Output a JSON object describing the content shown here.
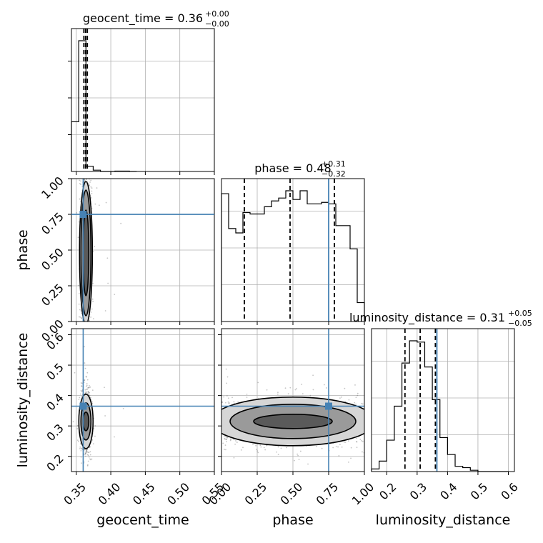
{
  "chart_data": {
    "type": "corner",
    "parameters": [
      "geocent_time",
      "phase",
      "luminosity_distance"
    ],
    "titles": [
      {
        "param": "geocent_time",
        "text": "geocent_time = 0.36",
        "plus": "+0.00",
        "minus": "−0.00"
      },
      {
        "param": "phase",
        "text": "phase = 0.48",
        "plus": "+0.31",
        "minus": "−0.32"
      },
      {
        "param": "luminosity_distance",
        "text": "luminosity_distance = 0.31",
        "plus": "+0.05",
        "minus": "−0.05"
      }
    ],
    "ranges": {
      "geocent_time": [
        0.343,
        0.55
      ],
      "phase": [
        0.0,
        1.0
      ],
      "luminosity_distance": [
        0.15,
        0.62
      ]
    },
    "ticks": {
      "geocent_time": [
        "0.35",
        "0.40",
        "0.45",
        "0.50",
        "0.55"
      ],
      "phase": [
        "0.00",
        "0.25",
        "0.50",
        "0.75",
        "1.00"
      ],
      "luminosity_distance": [
        "0.2",
        "0.3",
        "0.4",
        "0.5",
        "0.6"
      ]
    },
    "truths": {
      "geocent_time": 0.36,
      "phase": 0.75,
      "luminosity_distance": 0.365
    },
    "quantiles": {
      "geocent_time": [
        0.361,
        0.3635,
        0.366
      ],
      "phase": [
        0.16,
        0.48,
        0.79
      ],
      "luminosity_distance": [
        0.26,
        0.31,
        0.36
      ]
    },
    "histograms": {
      "geocent_time": {
        "edges": [
          0.343,
          0.3535,
          0.364,
          0.3745,
          0.385,
          0.3955,
          0.406,
          0.4165,
          0.427,
          0.4375
        ],
        "counts": [
          0.38,
          1.0,
          0.04,
          0.01,
          0.0,
          0.0,
          0.003,
          0.003,
          0.0
        ]
      },
      "phase": {
        "edges": [
          0.0,
          0.05,
          0.1,
          0.15,
          0.2,
          0.25,
          0.3,
          0.35,
          0.4,
          0.45,
          0.5,
          0.55,
          0.6,
          0.65,
          0.7,
          0.75,
          0.8,
          0.85,
          0.9,
          0.95,
          1.0
        ],
        "counts": [
          0.88,
          0.64,
          0.61,
          0.75,
          0.74,
          0.74,
          0.79,
          0.83,
          0.85,
          0.9,
          0.84,
          0.9,
          0.81,
          0.81,
          0.82,
          0.81,
          0.66,
          0.66,
          0.5,
          0.13
        ]
      },
      "luminosity_distance": {
        "edges": [
          0.15,
          0.175,
          0.2,
          0.225,
          0.25,
          0.275,
          0.3,
          0.325,
          0.35,
          0.375,
          0.4,
          0.425,
          0.45,
          0.475,
          0.5,
          0.525,
          0.55,
          0.575,
          0.6
        ],
        "counts": [
          0.02,
          0.08,
          0.24,
          0.5,
          0.83,
          1.0,
          0.99,
          0.8,
          0.55,
          0.26,
          0.13,
          0.04,
          0.03,
          0.01,
          0.0,
          0.0,
          0.0,
          0.0
        ]
      }
    },
    "contours_2d": {
      "geocent_time-phase": {
        "center": [
          0.364,
          0.48
        ],
        "width": [
          0.004,
          0.5
        ]
      },
      "geocent_time-luminosity_distance": {
        "center": [
          0.364,
          0.315
        ],
        "width": [
          0.0035,
          0.07
        ]
      },
      "phase-luminosity_distance": {
        "center": [
          0.5,
          0.315
        ],
        "width": [
          0.45,
          0.07
        ]
      }
    },
    "colors": {
      "truth": "#4682b4",
      "line": "#000000",
      "grid": "#b0b0b0",
      "points": "#555555"
    }
  }
}
